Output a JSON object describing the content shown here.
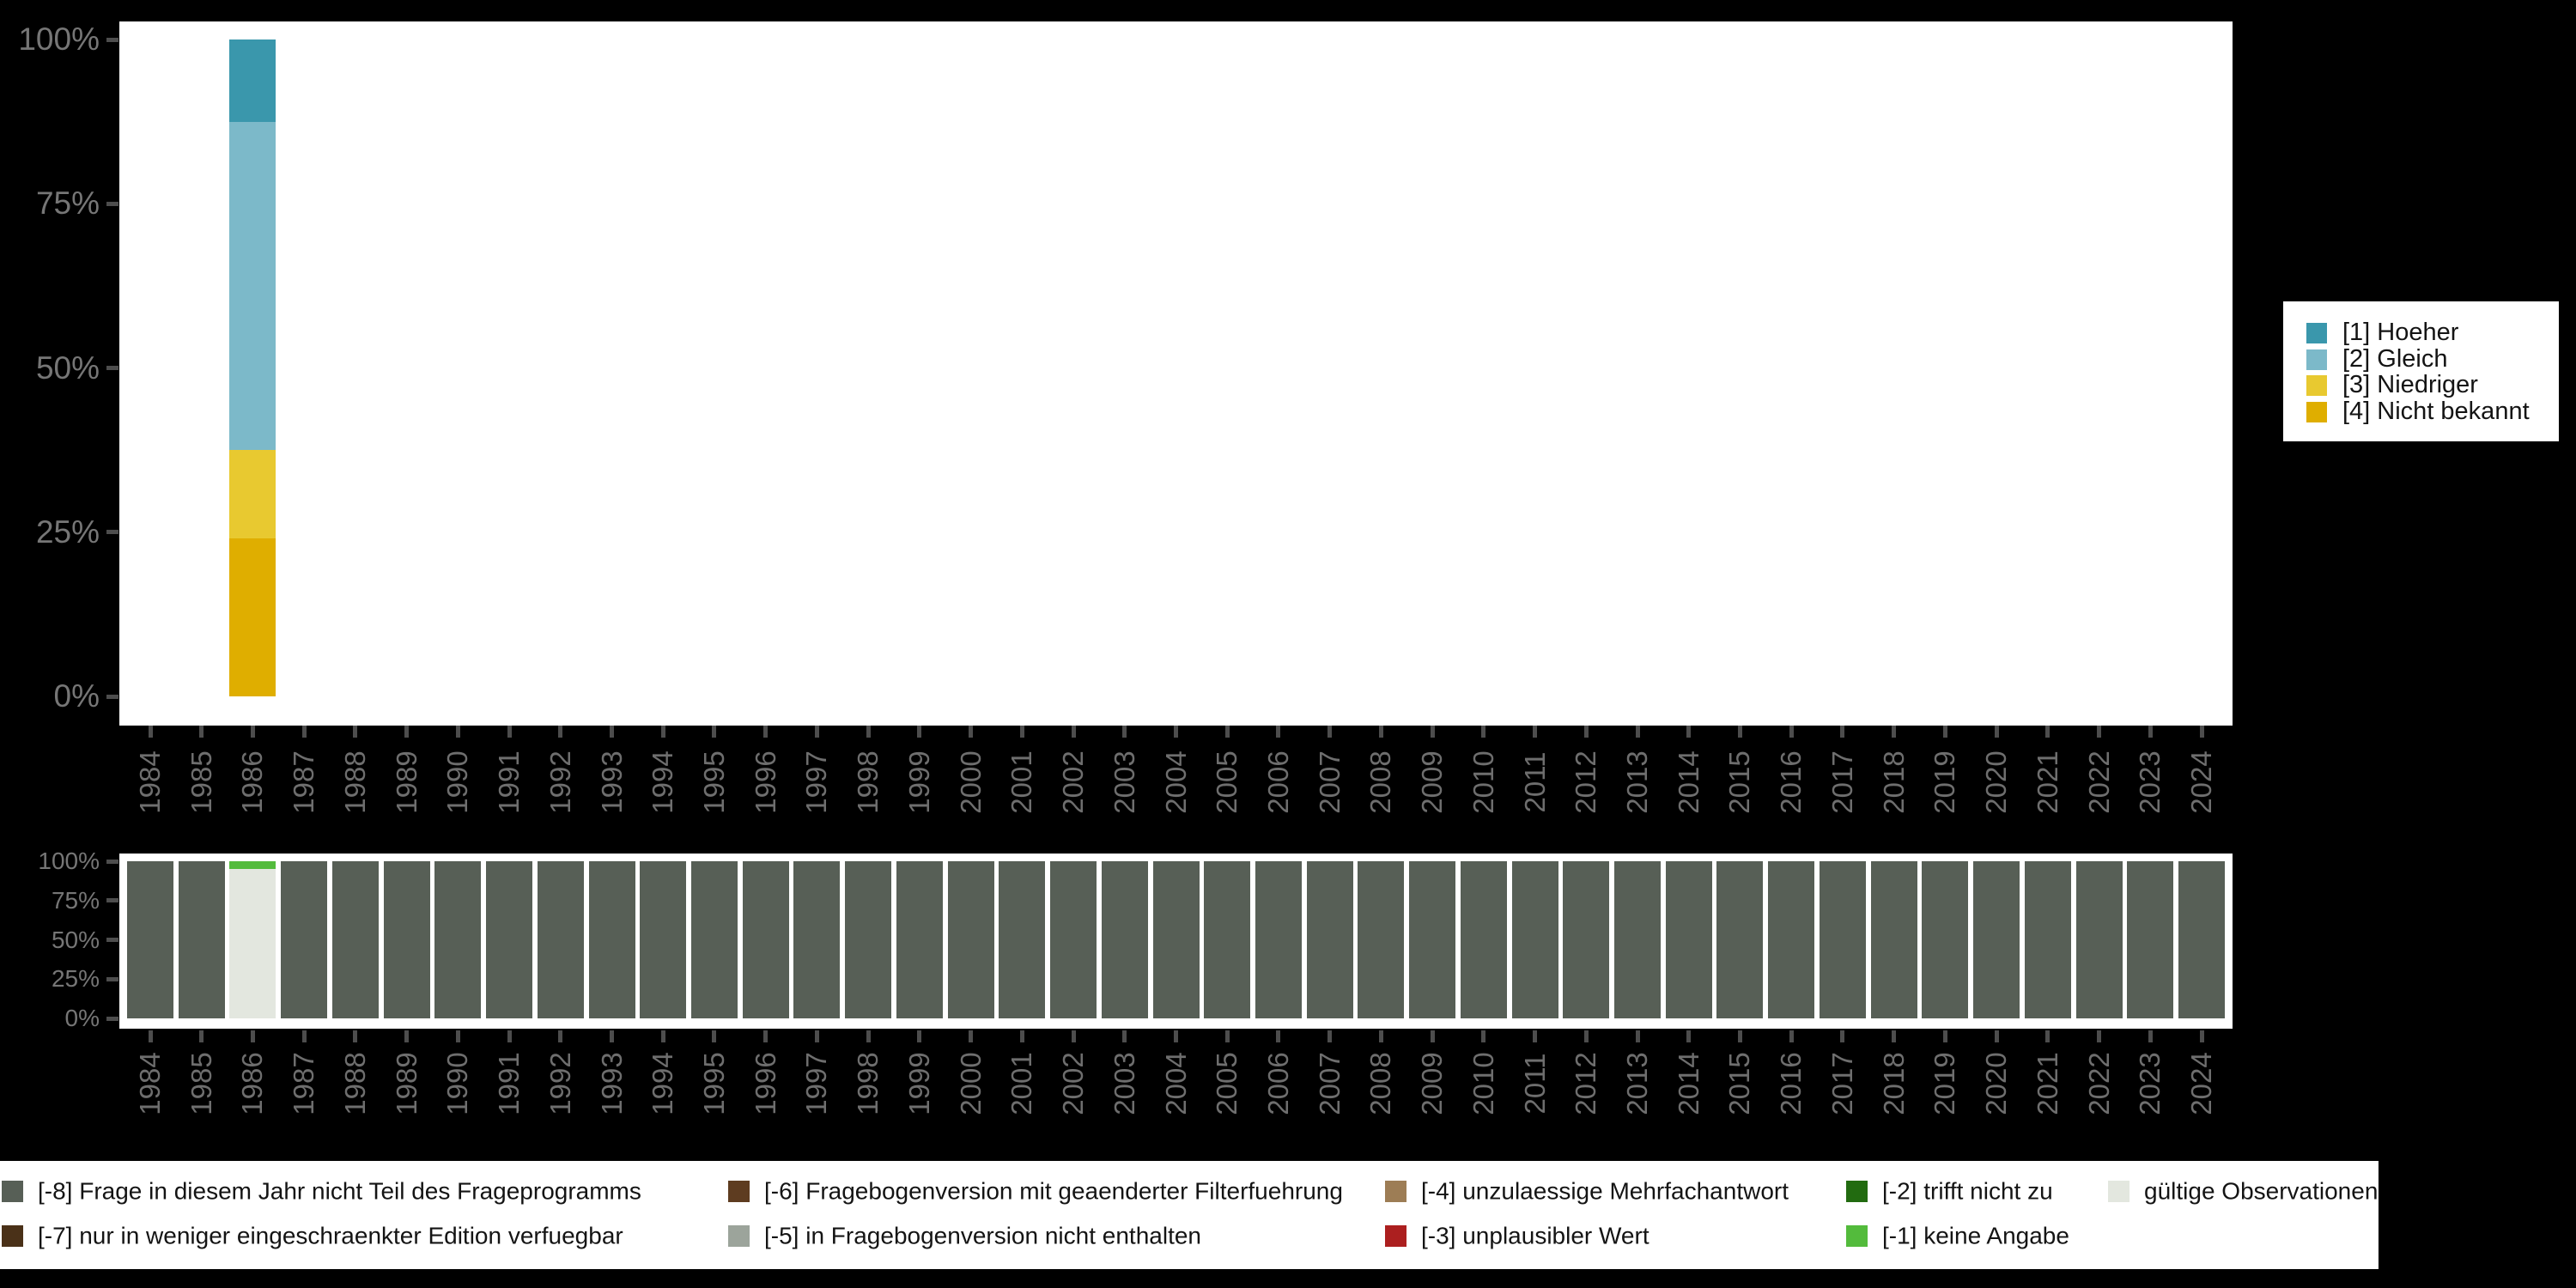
{
  "background": "#000000",
  "panel_color": "#ffffff",
  "axis": {
    "tick_color": "#4d4d4d",
    "label_color": "#6e6e6e"
  },
  "years": [
    "1984",
    "1985",
    "1986",
    "1987",
    "1988",
    "1989",
    "1990",
    "1991",
    "1992",
    "1993",
    "1994",
    "1995",
    "1996",
    "1997",
    "1998",
    "1999",
    "2000",
    "2001",
    "2002",
    "2003",
    "2004",
    "2005",
    "2006",
    "2007",
    "2008",
    "2009",
    "2010",
    "2011",
    "2012",
    "2013",
    "2014",
    "2015",
    "2016",
    "2017",
    "2018",
    "2019",
    "2020",
    "2021",
    "2022",
    "2023",
    "2024"
  ],
  "chart_data": [
    {
      "id": "top",
      "type": "bar",
      "stacked": true,
      "unit": "percent",
      "title": "",
      "xlabel": "",
      "ylabel": "",
      "ylim": [
        0,
        100
      ],
      "grid": "off",
      "y_tick_labels": [
        "100%",
        "75%",
        "50%",
        "25%",
        "0%"
      ],
      "y_tick_values": [
        100,
        75,
        50,
        25,
        0
      ],
      "categories": [
        "1984",
        "1985",
        "1986",
        "1987",
        "1988",
        "1989",
        "1990",
        "1991",
        "1992",
        "1993",
        "1994",
        "1995",
        "1996",
        "1997",
        "1998",
        "1999",
        "2000",
        "2001",
        "2002",
        "2003",
        "2004",
        "2005",
        "2006",
        "2007",
        "2008",
        "2009",
        "2010",
        "2011",
        "2012",
        "2013",
        "2014",
        "2015",
        "2016",
        "2017",
        "2018",
        "2019",
        "2020",
        "2021",
        "2022",
        "2023",
        "2024"
      ],
      "series": [
        {
          "name": "[1] Hoeher",
          "color": "#3a97ac",
          "data": {
            "1986": 12.5
          }
        },
        {
          "name": "[2] Gleich",
          "color": "#7cb9c9",
          "data": {
            "1986": 50
          }
        },
        {
          "name": "[3] Niedriger",
          "color": "#e8c930",
          "data": {
            "1986": 13.5
          }
        },
        {
          "name": "[4] Nicht bekannt",
          "color": "#dfae00",
          "data": {
            "1986": 24
          }
        }
      ],
      "legend": {
        "position": "right",
        "entries": [
          {
            "label": "[1] Hoeher",
            "color": "#3a97ac"
          },
          {
            "label": "[2] Gleich",
            "color": "#7cb9c9"
          },
          {
            "label": "[3] Niedriger",
            "color": "#e8c930"
          },
          {
            "label": "[4] Nicht bekannt",
            "color": "#dfae00"
          }
        ]
      }
    },
    {
      "id": "bottom",
      "type": "bar",
      "stacked": true,
      "unit": "percent",
      "title": "",
      "xlabel": "",
      "ylabel": "",
      "ylim": [
        0,
        100
      ],
      "grid": "off",
      "y_tick_labels": [
        "100%",
        "75%",
        "50%",
        "25%",
        "0%"
      ],
      "y_tick_values": [
        100,
        75,
        50,
        25,
        0
      ],
      "categories": [
        "1984",
        "1985",
        "1986",
        "1987",
        "1988",
        "1989",
        "1990",
        "1991",
        "1992",
        "1993",
        "1994",
        "1995",
        "1996",
        "1997",
        "1998",
        "1999",
        "2000",
        "2001",
        "2002",
        "2003",
        "2004",
        "2005",
        "2006",
        "2007",
        "2008",
        "2009",
        "2010",
        "2011",
        "2012",
        "2013",
        "2014",
        "2015",
        "2016",
        "2017",
        "2018",
        "2019",
        "2020",
        "2021",
        "2022",
        "2023",
        "2024"
      ],
      "series": [
        {
          "name": "[-8] Frage in diesem Jahr nicht Teil des Frageprogramms",
          "color": "#575f56",
          "default": 100,
          "data": {
            "1986": 0
          }
        },
        {
          "name": "gültige Observationen",
          "color": "#e3e7df",
          "default": 0,
          "data": {
            "1986": 95
          }
        },
        {
          "name": "[-1] keine Angabe",
          "color": "#53bb3c",
          "default": 0,
          "data": {
            "1986": 5
          }
        }
      ]
    }
  ],
  "missing_codes_legend": {
    "rows": [
      [
        {
          "label": "[-8] Frage in diesem Jahr nicht Teil des Frageprogramms",
          "color": "#575f56"
        },
        {
          "label": "[-6] Fragebogenversion mit geaenderter Filterfuehrung",
          "color": "#5e3c20"
        },
        {
          "label": "[-4] unzulaessige Mehrfachantwort",
          "color": "#9d7d55"
        },
        {
          "label": "[-2] trifft nicht zu",
          "color": "#226b10"
        },
        {
          "label": "gültige Observationen",
          "color": "#e3e7df"
        }
      ],
      [
        {
          "label": "[-7] nur in weniger eingeschraenkter Edition verfuegbar",
          "color": "#4a3118"
        },
        {
          "label": "[-5] in Fragebogenversion nicht enthalten",
          "color": "#9ca49b"
        },
        {
          "label": "[-3] unplausibler Wert",
          "color": "#ac1f1f"
        },
        {
          "label": "[-1] keine Angabe",
          "color": "#53bb3c"
        }
      ]
    ]
  }
}
